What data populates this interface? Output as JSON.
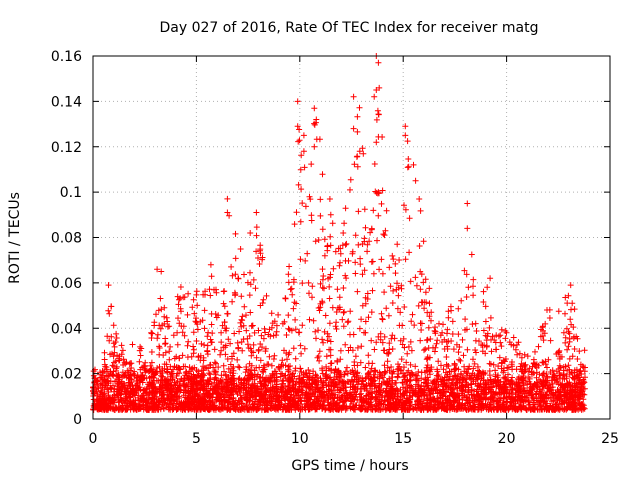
{
  "chart_data": {
    "type": "scatter",
    "title": "Day 027 of 2016, Rate Of TEC Index for receiver matg",
    "xlabel": "GPS time / hours",
    "ylabel": "ROTI / TECUs",
    "xlim": [
      0,
      25
    ],
    "ylim": [
      0,
      0.16
    ],
    "xticks": [
      0,
      5,
      10,
      15,
      20,
      25
    ],
    "xtick_labels": [
      "0",
      "5",
      "10",
      "15",
      "20",
      "25"
    ],
    "yticks": [
      0,
      0.02,
      0.04,
      0.06,
      0.08,
      0.1,
      0.12,
      0.14,
      0.16
    ],
    "ytick_labels": [
      "0",
      "0.02",
      "0.04",
      "0.06",
      "0.08",
      "0.1",
      "0.12",
      "0.14",
      "0.16"
    ],
    "grid": true,
    "marker": "+",
    "color": "#ff0000",
    "data_x_range": [
      0,
      23.8
    ],
    "baseline_band": [
      0.004,
      0.025
    ],
    "envelope": [
      {
        "x": 0.0,
        "y": 0.022
      },
      {
        "x": 0.5,
        "y": 0.024
      },
      {
        "x": 0.8,
        "y": 0.058
      },
      {
        "x": 1.3,
        "y": 0.033
      },
      {
        "x": 2.0,
        "y": 0.035
      },
      {
        "x": 2.6,
        "y": 0.03
      },
      {
        "x": 3.2,
        "y": 0.065
      },
      {
        "x": 3.6,
        "y": 0.045
      },
      {
        "x": 4.0,
        "y": 0.057
      },
      {
        "x": 4.6,
        "y": 0.06
      },
      {
        "x": 5.2,
        "y": 0.055
      },
      {
        "x": 5.8,
        "y": 0.068
      },
      {
        "x": 6.2,
        "y": 0.04
      },
      {
        "x": 6.6,
        "y": 0.097
      },
      {
        "x": 7.0,
        "y": 0.08
      },
      {
        "x": 7.6,
        "y": 0.07
      },
      {
        "x": 8.0,
        "y": 0.091
      },
      {
        "x": 8.6,
        "y": 0.05
      },
      {
        "x": 9.2,
        "y": 0.055
      },
      {
        "x": 9.6,
        "y": 0.075
      },
      {
        "x": 10.0,
        "y": 0.141
      },
      {
        "x": 10.3,
        "y": 0.125
      },
      {
        "x": 10.8,
        "y": 0.137
      },
      {
        "x": 11.2,
        "y": 0.11
      },
      {
        "x": 11.6,
        "y": 0.09
      },
      {
        "x": 12.0,
        "y": 0.082
      },
      {
        "x": 12.5,
        "y": 0.118
      },
      {
        "x": 12.9,
        "y": 0.142
      },
      {
        "x": 13.3,
        "y": 0.1
      },
      {
        "x": 13.8,
        "y": 0.16
      },
      {
        "x": 14.3,
        "y": 0.075
      },
      {
        "x": 14.8,
        "y": 0.09
      },
      {
        "x": 15.2,
        "y": 0.129
      },
      {
        "x": 15.6,
        "y": 0.112
      },
      {
        "x": 16.0,
        "y": 0.085
      },
      {
        "x": 16.5,
        "y": 0.045
      },
      {
        "x": 17.2,
        "y": 0.05
      },
      {
        "x": 17.8,
        "y": 0.055
      },
      {
        "x": 18.2,
        "y": 0.095
      },
      {
        "x": 18.6,
        "y": 0.045
      },
      {
        "x": 19.0,
        "y": 0.062
      },
      {
        "x": 19.5,
        "y": 0.04
      },
      {
        "x": 20.0,
        "y": 0.04
      },
      {
        "x": 20.5,
        "y": 0.035
      },
      {
        "x": 21.0,
        "y": 0.03
      },
      {
        "x": 21.5,
        "y": 0.032
      },
      {
        "x": 21.9,
        "y": 0.055
      },
      {
        "x": 22.4,
        "y": 0.045
      },
      {
        "x": 23.0,
        "y": 0.06
      },
      {
        "x": 23.5,
        "y": 0.04
      },
      {
        "x": 23.8,
        "y": 0.03
      }
    ],
    "peaks": [
      {
        "x": 0.75,
        "y": 0.059
      },
      {
        "x": 3.1,
        "y": 0.066
      },
      {
        "x": 3.3,
        "y": 0.065
      },
      {
        "x": 5.7,
        "y": 0.068
      },
      {
        "x": 6.5,
        "y": 0.097
      },
      {
        "x": 6.5,
        "y": 0.091
      },
      {
        "x": 7.9,
        "y": 0.091
      },
      {
        "x": 7.6,
        "y": 0.082
      },
      {
        "x": 9.9,
        "y": 0.14
      },
      {
        "x": 9.9,
        "y": 0.129
      },
      {
        "x": 10.2,
        "y": 0.125
      },
      {
        "x": 10.2,
        "y": 0.118
      },
      {
        "x": 10.7,
        "y": 0.137
      },
      {
        "x": 10.8,
        "y": 0.132
      },
      {
        "x": 10.7,
        "y": 0.12
      },
      {
        "x": 11.5,
        "y": 0.09
      },
      {
        "x": 12.1,
        "y": 0.082
      },
      {
        "x": 12.6,
        "y": 0.142
      },
      {
        "x": 12.6,
        "y": 0.128
      },
      {
        "x": 12.9,
        "y": 0.118
      },
      {
        "x": 13.7,
        "y": 0.16
      },
      {
        "x": 13.8,
        "y": 0.157
      },
      {
        "x": 13.7,
        "y": 0.145
      },
      {
        "x": 13.6,
        "y": 0.142
      },
      {
        "x": 13.7,
        "y": 0.122
      },
      {
        "x": 13.8,
        "y": 0.1
      },
      {
        "x": 15.1,
        "y": 0.129
      },
      {
        "x": 15.1,
        "y": 0.125
      },
      {
        "x": 15.5,
        "y": 0.112
      },
      {
        "x": 15.6,
        "y": 0.105
      },
      {
        "x": 18.1,
        "y": 0.095
      },
      {
        "x": 18.1,
        "y": 0.084
      },
      {
        "x": 19.2,
        "y": 0.062
      },
      {
        "x": 23.1,
        "y": 0.059
      }
    ]
  }
}
